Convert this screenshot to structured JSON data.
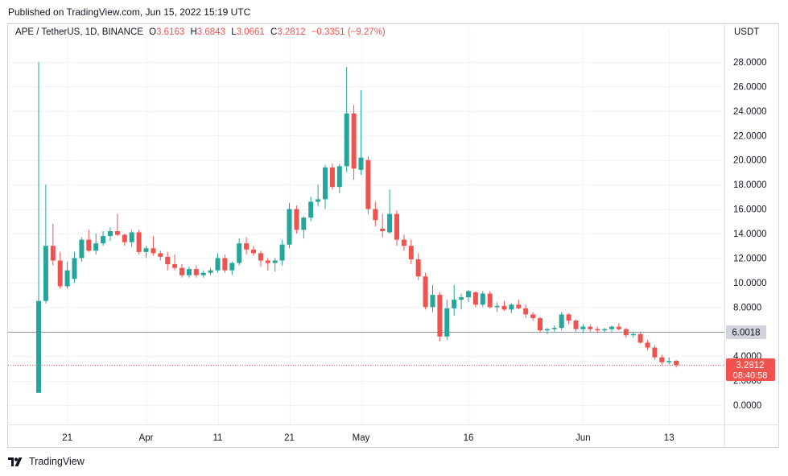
{
  "header": {
    "published": "Published on TradingView.com, Jun 15, 2022 15:19 UTC"
  },
  "legend": {
    "symbol": "APE / TetherUS, 1D, BINANCE",
    "o_label": "O",
    "o_value": "3.6163",
    "h_label": "H",
    "h_value": "3.6843",
    "l_label": "L",
    "l_value": "3.0661",
    "c_label": "C",
    "c_value": "3.2812",
    "change": "−0.3351 (−9.27%)"
  },
  "currency": "USDT",
  "footer": {
    "brand": "TradingView"
  },
  "colors": {
    "up": "#26a69a",
    "down": "#ef5350",
    "grid": "#f0f3fa",
    "axis_text": "#131722",
    "hline": "#9598a1"
  },
  "chart_data": {
    "type": "candlestick",
    "y_ticks": [
      "28.0000",
      "26.0000",
      "24.0000",
      "22.0000",
      "20.0000",
      "18.0000",
      "16.0000",
      "14.0000",
      "12.0000",
      "10.0000",
      "8.0000",
      "6.0000",
      "4.0000",
      "2.0000",
      "0.0000"
    ],
    "y_tick_values": [
      28,
      26,
      24,
      22,
      20,
      18,
      16,
      14,
      12,
      10,
      8,
      6,
      4,
      2,
      0
    ],
    "ylim": [
      -2,
      30
    ],
    "x_labels": [
      {
        "label": "21",
        "date": "2022-03-21"
      },
      {
        "label": "Apr",
        "date": "2022-04-01"
      },
      {
        "label": "11",
        "date": "2022-04-11"
      },
      {
        "label": "21",
        "date": "2022-04-21"
      },
      {
        "label": "May",
        "date": "2022-05-01"
      },
      {
        "label": "16",
        "date": "2022-05-16"
      },
      {
        "label": "Jun",
        "date": "2022-06-01"
      },
      {
        "label": "13",
        "date": "2022-06-13"
      }
    ],
    "horizontal_line": {
      "value": 6.0018,
      "label": "6.0018"
    },
    "last_price": {
      "value": 3.2812,
      "label": "3.2812",
      "countdown": "08:40:58"
    },
    "candles": [
      {
        "date": "2022-03-17",
        "o": 1.0,
        "h": 28.0,
        "l": 1.0,
        "c": 8.5
      },
      {
        "date": "2022-03-18",
        "o": 8.5,
        "h": 18.0,
        "l": 8.3,
        "c": 13.0
      },
      {
        "date": "2022-03-19",
        "o": 13.0,
        "h": 14.8,
        "l": 11.4,
        "c": 11.8
      },
      {
        "date": "2022-03-20",
        "o": 11.8,
        "h": 12.5,
        "l": 9.5,
        "c": 9.7
      },
      {
        "date": "2022-03-21",
        "o": 9.7,
        "h": 11.7,
        "l": 9.5,
        "c": 11.0
      },
      {
        "date": "2022-03-22",
        "o": 10.3,
        "h": 12.5,
        "l": 10.0,
        "c": 12.0
      },
      {
        "date": "2022-03-23",
        "o": 12.0,
        "h": 13.7,
        "l": 11.7,
        "c": 13.5
      },
      {
        "date": "2022-03-24",
        "o": 13.5,
        "h": 14.3,
        "l": 12.5,
        "c": 12.6
      },
      {
        "date": "2022-03-25",
        "o": 12.6,
        "h": 14.0,
        "l": 12.3,
        "c": 13.2
      },
      {
        "date": "2022-03-26",
        "o": 13.2,
        "h": 14.2,
        "l": 13.0,
        "c": 13.8
      },
      {
        "date": "2022-03-27",
        "o": 13.8,
        "h": 14.5,
        "l": 13.4,
        "c": 14.2
      },
      {
        "date": "2022-03-28",
        "o": 14.2,
        "h": 15.6,
        "l": 13.8,
        "c": 13.9
      },
      {
        "date": "2022-03-29",
        "o": 13.9,
        "h": 14.0,
        "l": 13.0,
        "c": 13.3
      },
      {
        "date": "2022-03-30",
        "o": 13.3,
        "h": 14.3,
        "l": 12.9,
        "c": 14.1
      },
      {
        "date": "2022-03-31",
        "o": 14.1,
        "h": 14.3,
        "l": 12.3,
        "c": 12.5
      },
      {
        "date": "2022-04-01",
        "o": 12.5,
        "h": 13.0,
        "l": 12.0,
        "c": 12.8
      },
      {
        "date": "2022-04-02",
        "o": 12.8,
        "h": 13.8,
        "l": 12.2,
        "c": 12.4
      },
      {
        "date": "2022-04-03",
        "o": 12.4,
        "h": 12.6,
        "l": 11.8,
        "c": 12.1
      },
      {
        "date": "2022-04-04",
        "o": 12.1,
        "h": 12.5,
        "l": 11.0,
        "c": 11.5
      },
      {
        "date": "2022-04-05",
        "o": 11.5,
        "h": 12.3,
        "l": 11.0,
        "c": 11.2
      },
      {
        "date": "2022-04-06",
        "o": 11.2,
        "h": 11.5,
        "l": 10.4,
        "c": 10.6
      },
      {
        "date": "2022-04-07",
        "o": 10.6,
        "h": 11.3,
        "l": 10.4,
        "c": 11.1
      },
      {
        "date": "2022-04-08",
        "o": 11.1,
        "h": 11.4,
        "l": 10.4,
        "c": 10.6
      },
      {
        "date": "2022-04-09",
        "o": 10.6,
        "h": 11.0,
        "l": 10.4,
        "c": 10.8
      },
      {
        "date": "2022-04-10",
        "o": 10.8,
        "h": 11.2,
        "l": 10.6,
        "c": 11.0
      },
      {
        "date": "2022-04-11",
        "o": 11.0,
        "h": 12.4,
        "l": 10.8,
        "c": 12.0
      },
      {
        "date": "2022-04-12",
        "o": 12.0,
        "h": 12.3,
        "l": 10.8,
        "c": 11.0
      },
      {
        "date": "2022-04-13",
        "o": 11.0,
        "h": 11.7,
        "l": 10.6,
        "c": 11.6
      },
      {
        "date": "2022-04-14",
        "o": 11.6,
        "h": 13.6,
        "l": 11.4,
        "c": 13.2
      },
      {
        "date": "2022-04-15",
        "o": 13.2,
        "h": 13.7,
        "l": 12.3,
        "c": 12.7
      },
      {
        "date": "2022-04-16",
        "o": 12.7,
        "h": 13.0,
        "l": 12.2,
        "c": 12.4
      },
      {
        "date": "2022-04-17",
        "o": 12.4,
        "h": 12.6,
        "l": 11.3,
        "c": 11.8
      },
      {
        "date": "2022-04-18",
        "o": 11.8,
        "h": 12.0,
        "l": 11.0,
        "c": 11.6
      },
      {
        "date": "2022-04-19",
        "o": 11.6,
        "h": 12.0,
        "l": 10.9,
        "c": 11.8
      },
      {
        "date": "2022-04-20",
        "o": 11.8,
        "h": 13.5,
        "l": 11.4,
        "c": 13.1
      },
      {
        "date": "2022-04-21",
        "o": 13.1,
        "h": 16.5,
        "l": 12.8,
        "c": 16.0
      },
      {
        "date": "2022-04-22",
        "o": 16.0,
        "h": 16.3,
        "l": 14.0,
        "c": 14.3
      },
      {
        "date": "2022-04-23",
        "o": 14.3,
        "h": 15.4,
        "l": 13.6,
        "c": 15.3
      },
      {
        "date": "2022-04-24",
        "o": 15.3,
        "h": 17.0,
        "l": 15.0,
        "c": 16.6
      },
      {
        "date": "2022-04-25",
        "o": 16.6,
        "h": 18.0,
        "l": 16.2,
        "c": 16.8
      },
      {
        "date": "2022-04-26",
        "o": 16.8,
        "h": 19.6,
        "l": 16.0,
        "c": 19.4
      },
      {
        "date": "2022-04-27",
        "o": 19.4,
        "h": 19.7,
        "l": 17.6,
        "c": 17.8
      },
      {
        "date": "2022-04-28",
        "o": 17.8,
        "h": 19.7,
        "l": 17.3,
        "c": 19.5
      },
      {
        "date": "2022-04-29",
        "o": 19.5,
        "h": 27.6,
        "l": 19.0,
        "c": 23.8
      },
      {
        "date": "2022-04-30",
        "o": 23.8,
        "h": 24.5,
        "l": 18.4,
        "c": 19.3
      },
      {
        "date": "2022-05-01",
        "o": 19.2,
        "h": 25.7,
        "l": 18.8,
        "c": 20.2
      },
      {
        "date": "2022-05-02",
        "o": 20.0,
        "h": 20.3,
        "l": 15.6,
        "c": 16.0
      },
      {
        "date": "2022-05-03",
        "o": 16.0,
        "h": 16.6,
        "l": 14.6,
        "c": 15.1
      },
      {
        "date": "2022-05-04",
        "o": 14.4,
        "h": 15.6,
        "l": 13.7,
        "c": 14.2
      },
      {
        "date": "2022-05-05",
        "o": 14.1,
        "h": 17.6,
        "l": 14.0,
        "c": 15.6
      },
      {
        "date": "2022-05-06",
        "o": 15.6,
        "h": 15.9,
        "l": 13.0,
        "c": 13.5
      },
      {
        "date": "2022-05-07",
        "o": 13.5,
        "h": 13.9,
        "l": 12.6,
        "c": 13.0
      },
      {
        "date": "2022-05-08",
        "o": 13.0,
        "h": 13.5,
        "l": 11.5,
        "c": 11.9
      },
      {
        "date": "2022-05-09",
        "o": 11.9,
        "h": 12.4,
        "l": 10.2,
        "c": 10.5
      },
      {
        "date": "2022-05-10",
        "o": 10.5,
        "h": 10.8,
        "l": 7.8,
        "c": 8.0
      },
      {
        "date": "2022-05-11",
        "o": 8.0,
        "h": 9.8,
        "l": 7.6,
        "c": 9.0
      },
      {
        "date": "2022-05-12",
        "o": 9.0,
        "h": 9.2,
        "l": 5.2,
        "c": 5.6
      },
      {
        "date": "2022-05-13",
        "o": 5.6,
        "h": 8.6,
        "l": 5.3,
        "c": 7.9
      },
      {
        "date": "2022-05-14",
        "o": 7.9,
        "h": 9.8,
        "l": 7.3,
        "c": 8.6
      },
      {
        "date": "2022-05-15",
        "o": 8.6,
        "h": 9.1,
        "l": 7.8,
        "c": 8.8
      },
      {
        "date": "2022-05-16",
        "o": 8.8,
        "h": 9.4,
        "l": 8.4,
        "c": 9.3
      },
      {
        "date": "2022-05-17",
        "o": 9.2,
        "h": 9.3,
        "l": 8.0,
        "c": 8.2
      },
      {
        "date": "2022-05-18",
        "o": 8.2,
        "h": 9.3,
        "l": 8.0,
        "c": 9.1
      },
      {
        "date": "2022-05-19",
        "o": 9.1,
        "h": 9.3,
        "l": 7.9,
        "c": 8.0
      },
      {
        "date": "2022-05-20",
        "o": 8.0,
        "h": 8.4,
        "l": 7.6,
        "c": 8.1
      },
      {
        "date": "2022-05-21",
        "o": 8.1,
        "h": 8.5,
        "l": 7.7,
        "c": 7.8
      },
      {
        "date": "2022-05-22",
        "o": 7.8,
        "h": 8.3,
        "l": 7.5,
        "c": 8.2
      },
      {
        "date": "2022-05-23",
        "o": 8.2,
        "h": 8.6,
        "l": 7.8,
        "c": 7.9
      },
      {
        "date": "2022-05-24",
        "o": 7.9,
        "h": 8.2,
        "l": 7.1,
        "c": 7.4
      },
      {
        "date": "2022-05-25",
        "o": 7.4,
        "h": 7.6,
        "l": 6.9,
        "c": 7.1
      },
      {
        "date": "2022-05-26",
        "o": 7.1,
        "h": 7.2,
        "l": 5.9,
        "c": 6.1
      },
      {
        "date": "2022-05-27",
        "o": 6.1,
        "h": 6.3,
        "l": 5.8,
        "c": 6.2
      },
      {
        "date": "2022-05-28",
        "o": 6.2,
        "h": 6.5,
        "l": 6.0,
        "c": 6.3
      },
      {
        "date": "2022-05-29",
        "o": 6.3,
        "h": 7.6,
        "l": 6.1,
        "c": 7.4
      },
      {
        "date": "2022-05-30",
        "o": 7.4,
        "h": 7.5,
        "l": 6.6,
        "c": 6.9
      },
      {
        "date": "2022-05-31",
        "o": 6.9,
        "h": 7.0,
        "l": 6.0,
        "c": 6.2
      },
      {
        "date": "2022-06-01",
        "o": 6.2,
        "h": 6.6,
        "l": 5.9,
        "c": 6.4
      },
      {
        "date": "2022-06-02",
        "o": 6.4,
        "h": 6.6,
        "l": 6.0,
        "c": 6.2
      },
      {
        "date": "2022-06-03",
        "o": 6.2,
        "h": 6.4,
        "l": 5.9,
        "c": 6.1
      },
      {
        "date": "2022-06-04",
        "o": 6.1,
        "h": 6.3,
        "l": 5.9,
        "c": 6.2
      },
      {
        "date": "2022-06-05",
        "o": 6.2,
        "h": 6.5,
        "l": 6.0,
        "c": 6.4
      },
      {
        "date": "2022-06-06",
        "o": 6.4,
        "h": 6.7,
        "l": 6.1,
        "c": 6.2
      },
      {
        "date": "2022-06-07",
        "o": 6.2,
        "h": 6.3,
        "l": 5.5,
        "c": 5.7
      },
      {
        "date": "2022-06-08",
        "o": 5.7,
        "h": 6.0,
        "l": 5.5,
        "c": 5.8
      },
      {
        "date": "2022-06-09",
        "o": 5.8,
        "h": 6.0,
        "l": 5.0,
        "c": 5.1
      },
      {
        "date": "2022-06-10",
        "o": 5.1,
        "h": 5.3,
        "l": 4.5,
        "c": 4.7
      },
      {
        "date": "2022-06-11",
        "o": 4.7,
        "h": 4.9,
        "l": 3.7,
        "c": 3.9
      },
      {
        "date": "2022-06-12",
        "o": 3.9,
        "h": 4.1,
        "l": 3.3,
        "c": 3.5
      },
      {
        "date": "2022-06-13",
        "o": 3.5,
        "h": 3.9,
        "l": 3.3,
        "c": 3.6
      },
      {
        "date": "2022-06-14",
        "o": 3.6163,
        "h": 3.6843,
        "l": 3.0661,
        "c": 3.2812
      }
    ]
  }
}
